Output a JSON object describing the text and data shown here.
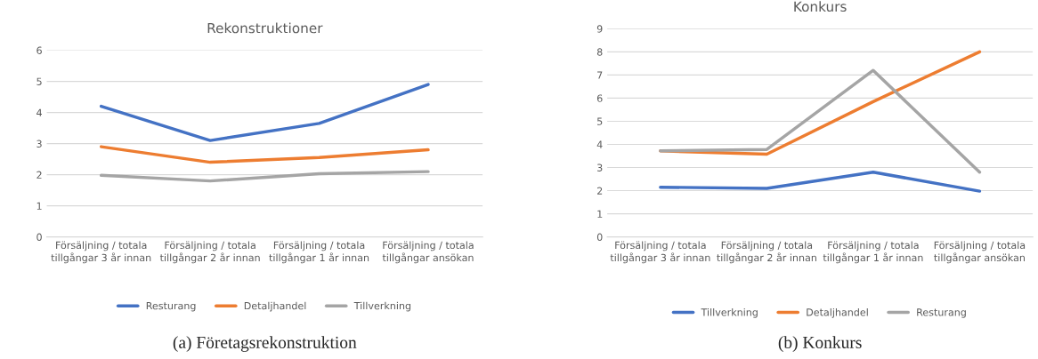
{
  "chart_data": [
    {
      "type": "line",
      "title": "Rekonstruktioner",
      "categories": [
        "Försäljning / totala\ntillgångar 3 år innan",
        "Försäljning / totala\ntillgångar 2 år innan",
        "Försäljning / totala\ntillgångar 1 år innan",
        "Försäljning / totala\ntillgångar ansökan"
      ],
      "series": [
        {
          "name": "Resturang",
          "color": "#4472c4",
          "values": [
            4.2,
            3.1,
            3.65,
            4.9
          ]
        },
        {
          "name": "Detaljhandel",
          "color": "#ed7d31",
          "values": [
            2.9,
            2.4,
            2.55,
            2.8
          ]
        },
        {
          "name": "Tillverkning",
          "color": "#a5a5a5",
          "values": [
            1.98,
            1.8,
            2.03,
            2.1
          ]
        }
      ],
      "ylim": [
        0,
        6
      ],
      "yticks": [
        0,
        1,
        2,
        3,
        4,
        5,
        6
      ],
      "grid": "y",
      "legend": "bottom",
      "marker": "none",
      "line_style": "solid",
      "annotations": [
        "(a) Företagsrekonstruktion"
      ]
    },
    {
      "type": "line",
      "title": "Konkurs",
      "categories": [
        "Försäljning / totala\ntillgångar 3 år innan",
        "Försäljning / totala\ntillgångar 2 år innan",
        "Försäljning / totala\ntillgångar 1 år innan",
        "Försäljning / totala\ntillgångar ansökan"
      ],
      "series": [
        {
          "name": "Tillverkning",
          "color": "#4472c4",
          "values": [
            2.15,
            2.1,
            2.8,
            1.98
          ]
        },
        {
          "name": "Detaljhandel",
          "color": "#ed7d31",
          "values": [
            3.72,
            3.58,
            5.85,
            8.0
          ]
        },
        {
          "name": "Resturang",
          "color": "#a5a5a5",
          "values": [
            3.72,
            3.78,
            7.2,
            2.8
          ]
        }
      ],
      "ylim": [
        0,
        9
      ],
      "yticks": [
        0,
        1,
        2,
        3,
        4,
        5,
        6,
        7,
        8,
        9
      ],
      "grid": "y",
      "legend": "bottom",
      "marker": "none",
      "line_style": "solid",
      "annotations": [
        "(b) Konkurs"
      ]
    }
  ]
}
